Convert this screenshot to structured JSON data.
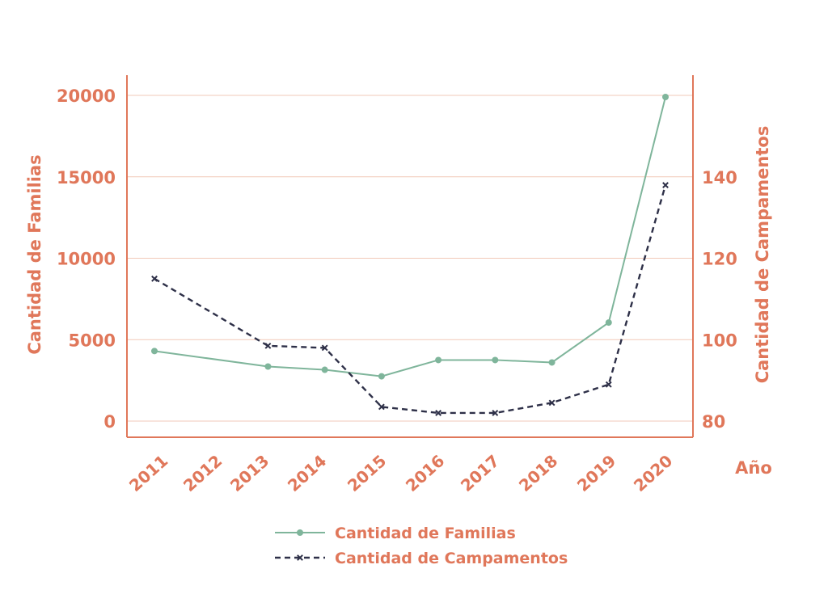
{
  "colors": {
    "accent": "#E0775A",
    "grid": "#F2C9B8",
    "familias": "#7FB59B",
    "campamentos": "#2E3048"
  },
  "chart_data": {
    "type": "line",
    "x": [
      2011,
      2013,
      2014,
      2015,
      2016,
      2017,
      2018,
      2019,
      2020
    ],
    "x_tick_labels": [
      "2011",
      "2012",
      "2013",
      "2014",
      "2015",
      "2016",
      "2017",
      "2018",
      "2019",
      "2020"
    ],
    "xlabel": "Año",
    "ylabel_left": "Cantidad de Familias",
    "ylabel_right": "Cantidad de Campamentos",
    "ylim_left": [
      -1000,
      21000
    ],
    "ylim_right": [
      76,
      164
    ],
    "y_ticks_left": [
      0,
      5000,
      10000,
      15000,
      20000
    ],
    "y_ticks_right": [
      80,
      100,
      120,
      140
    ],
    "grid": true,
    "legend_position": "bottom-center",
    "series": [
      {
        "name": "Cantidad de Familias",
        "axis": "left",
        "marker": "circle",
        "dash": "solid",
        "values": [
          4300,
          3350,
          3150,
          2750,
          3750,
          3750,
          3600,
          6050,
          19900
        ]
      },
      {
        "name": "Cantidad de Campamentos",
        "axis": "right",
        "marker": "x",
        "dash": "dashed",
        "values": [
          115,
          98.5,
          98,
          83.5,
          82,
          82,
          84.5,
          89,
          138
        ]
      }
    ]
  }
}
